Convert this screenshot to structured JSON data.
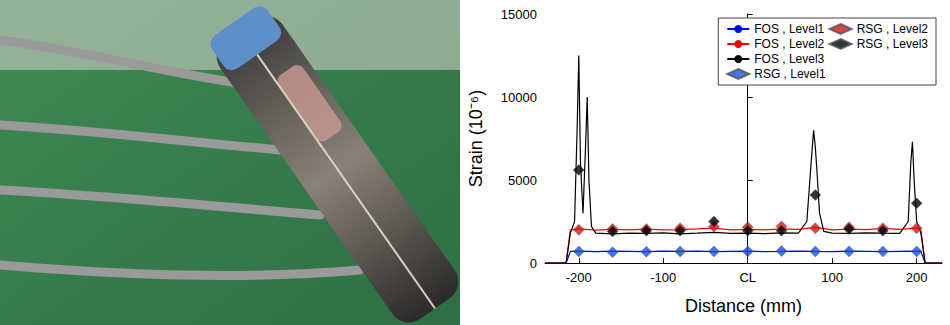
{
  "chart_data": {
    "type": "line",
    "xlabel": "Distance (mm)",
    "ylabel": "Strain (10⁻⁶)",
    "xlim": [
      -240,
      230
    ],
    "xticks": [
      -200,
      -100,
      {
        "value": 0,
        "label": "CL"
      },
      100,
      200
    ],
    "ylim": [
      0,
      15000
    ],
    "yticks": [
      0,
      5000,
      10000,
      15000
    ],
    "grid": false,
    "legend": "upper right",
    "series": [
      {
        "name": "FOS , Level1",
        "type": "line",
        "color": "#0000ff",
        "line_style": "solid",
        "x": [
          -240,
          -230,
          -215,
          -210,
          -200,
          -180,
          -160,
          -140,
          -120,
          -100,
          -80,
          -60,
          -40,
          -20,
          0,
          20,
          40,
          60,
          80,
          100,
          120,
          140,
          160,
          180,
          200,
          205,
          210,
          230
        ],
        "values": [
          0,
          0,
          0,
          700,
          720,
          690,
          710,
          700,
          680,
          710,
          700,
          720,
          690,
          700,
          710,
          690,
          700,
          720,
          700,
          690,
          710,
          700,
          690,
          700,
          710,
          700,
          0,
          0
        ]
      },
      {
        "name": "FOS , Level2",
        "type": "line",
        "color": "#ff0000",
        "line_style": "solid",
        "x": [
          -240,
          -230,
          -215,
          -210,
          -200,
          -180,
          -160,
          -140,
          -120,
          -100,
          -80,
          -60,
          -40,
          -20,
          0,
          20,
          40,
          60,
          80,
          100,
          120,
          140,
          160,
          180,
          200,
          205,
          210,
          230
        ],
        "values": [
          0,
          0,
          0,
          2000,
          2050,
          1980,
          2020,
          2000,
          2040,
          1990,
          2010,
          2050,
          2100,
          2000,
          2030,
          1990,
          2060,
          2020,
          2150,
          2000,
          2040,
          2010,
          2080,
          2020,
          2100,
          2000,
          0,
          0
        ]
      },
      {
        "name": "FOS , Level3",
        "type": "line",
        "color": "#000000",
        "line_style": "solid",
        "x": [
          -240,
          -230,
          -215,
          -210,
          -205,
          -202,
          -200,
          -198,
          -195,
          -192,
          -190,
          -188,
          -185,
          -180,
          -160,
          -140,
          -120,
          -100,
          -80,
          -60,
          -40,
          -20,
          0,
          20,
          40,
          60,
          70,
          75,
          78,
          80,
          82,
          85,
          90,
          100,
          120,
          140,
          160,
          180,
          190,
          193,
          195,
          197,
          200,
          205,
          210,
          230
        ],
        "values": [
          0,
          0,
          0,
          1800,
          2500,
          8000,
          12500,
          6000,
          3000,
          7000,
          10000,
          5000,
          2200,
          1800,
          1750,
          1800,
          1780,
          1820,
          1760,
          1800,
          1850,
          1780,
          1800,
          1770,
          1820,
          1800,
          2500,
          6000,
          8000,
          7000,
          5500,
          3000,
          1900,
          1800,
          1780,
          1820,
          1800,
          1790,
          2500,
          6000,
          7300,
          5000,
          2500,
          1800,
          0,
          0
        ]
      },
      {
        "name": "RSG , Level1",
        "type": "scatter",
        "color": "#1a4fd6",
        "marker": "diamond",
        "x": [
          -200,
          -160,
          -120,
          -80,
          -40,
          0,
          40,
          80,
          120,
          160,
          200
        ],
        "values": [
          700,
          650,
          680,
          700,
          700,
          700,
          720,
          700,
          700,
          700,
          700
        ]
      },
      {
        "name": "RSG , Level2",
        "type": "scatter",
        "color": "#d01515",
        "marker": "diamond",
        "x": [
          -200,
          -160,
          -120,
          -80,
          -40,
          0,
          40,
          80,
          120,
          160,
          200
        ],
        "values": [
          2000,
          2050,
          2050,
          2100,
          2200,
          2150,
          2200,
          2100,
          2150,
          2100,
          2100
        ]
      },
      {
        "name": "RSG , Level3",
        "type": "scatter",
        "color": "#000000",
        "marker": "diamond",
        "x": [
          -200,
          -160,
          -120,
          -80,
          -40,
          0,
          40,
          80,
          120,
          160,
          200
        ],
        "values": [
          5600,
          1900,
          1950,
          1950,
          2500,
          1950,
          1950,
          4100,
          2050,
          1950,
          3600
        ]
      }
    ]
  }
}
